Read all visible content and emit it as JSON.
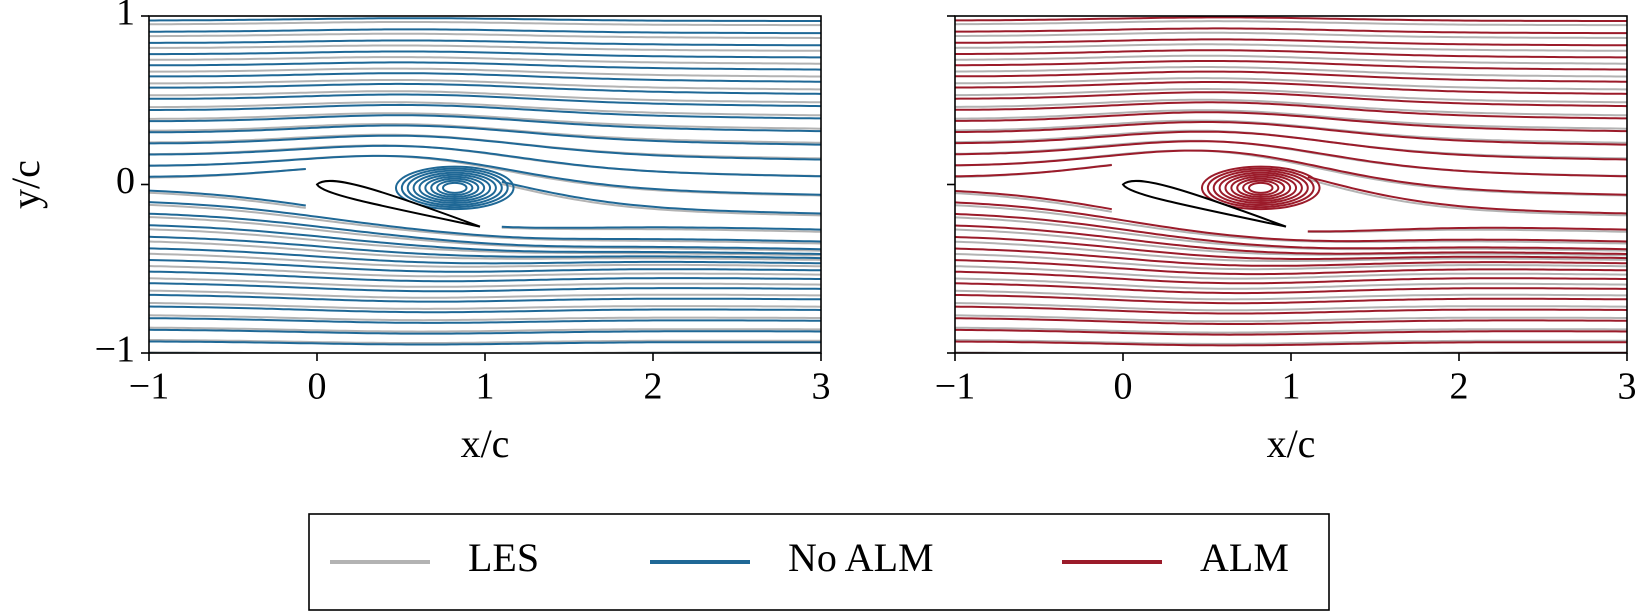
{
  "chart_data": [
    {
      "type": "streamline",
      "xlabel": "x/c",
      "ylabel": "y/c",
      "xlim": [
        -1,
        3
      ],
      "ylim": [
        -1,
        1
      ],
      "xticks": [
        {
          "value": -1,
          "label": "−1"
        },
        0,
        1,
        2,
        3
      ],
      "yticks": [
        {
          "value": -1,
          "label": "−1"
        },
        0,
        1
      ],
      "series": [
        {
          "name": "LES",
          "color": "#b3b3b3"
        },
        {
          "name": "No ALM",
          "color": "#1f6896"
        }
      ]
    },
    {
      "type": "streamline",
      "xlabel": "x/c",
      "xlim": [
        -1,
        3
      ],
      "ylim": [
        -1,
        1
      ],
      "xticks": [
        {
          "value": -1,
          "label": "−1"
        },
        0,
        1,
        2,
        3
      ],
      "yticks": [
        -1,
        0,
        1
      ],
      "series": [
        {
          "name": "ALM",
          "color": "#9b1b2a"
        }
      ]
    }
  ]
}
